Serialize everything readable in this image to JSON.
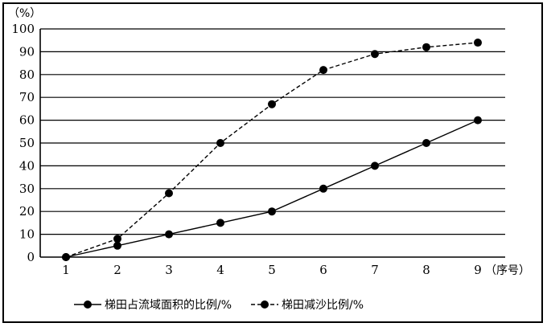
{
  "chart_data": {
    "type": "line",
    "ylabel": "（%）",
    "xlabel": "（序号）",
    "x": [
      1,
      2,
      3,
      4,
      5,
      6,
      7,
      8,
      9
    ],
    "ylim": [
      0,
      100
    ],
    "yticks": [
      0,
      10,
      20,
      30,
      40,
      50,
      60,
      70,
      80,
      90,
      100
    ],
    "grid": true,
    "legend_position": "bottom",
    "series": [
      {
        "name": "梯田占流域面积的比例/%",
        "style": "solid",
        "values": [
          0,
          5,
          10,
          15,
          20,
          30,
          40,
          50,
          60
        ]
      },
      {
        "name": "梯田减沙比例/%",
        "style": "dashed",
        "values": [
          0,
          8,
          28,
          50,
          67,
          82,
          89,
          92,
          94
        ]
      }
    ]
  }
}
